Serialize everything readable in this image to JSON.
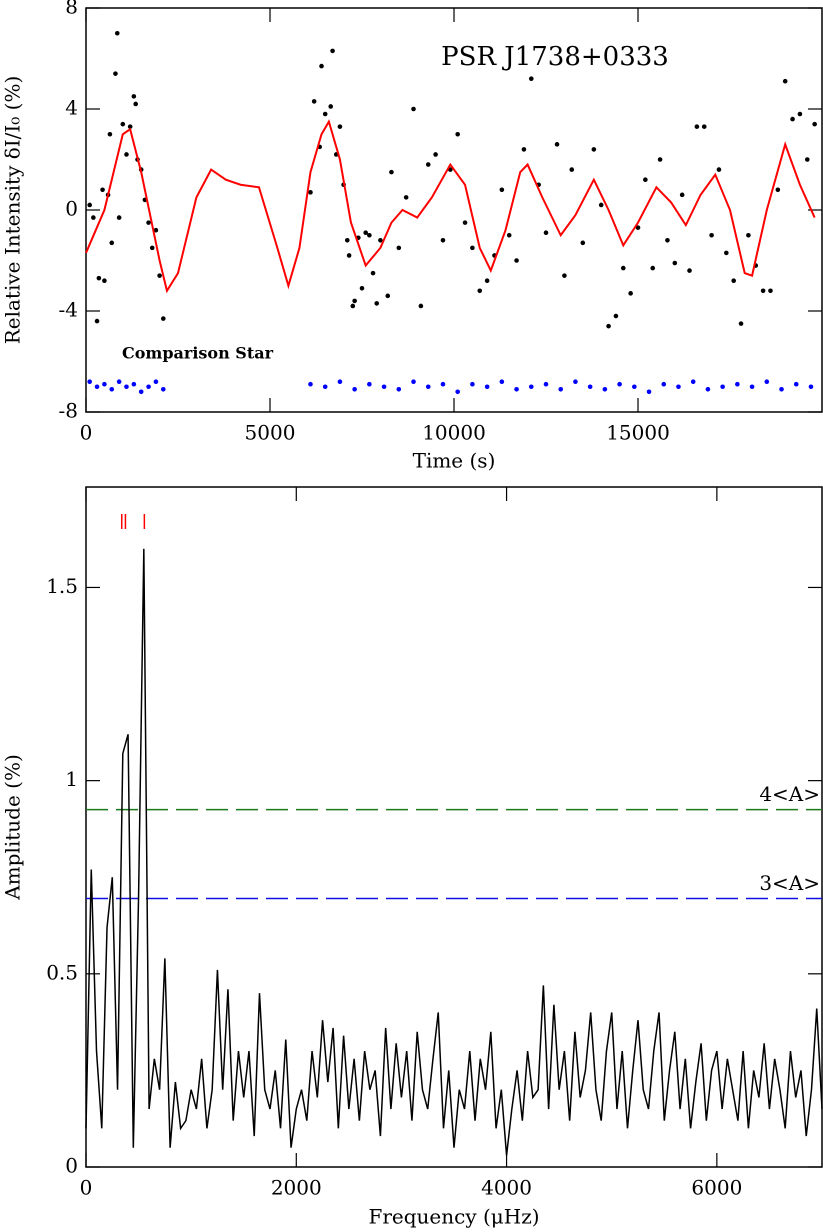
{
  "chart_data": [
    {
      "type": "scatter",
      "annotation": "PSR J1738+0333",
      "x_label": "Time (s)",
      "y_label": "Relative Intensity δI/I₀ (%)",
      "xlim": [
        0,
        20000
      ],
      "xticks": [
        0,
        5000,
        10000,
        15000
      ],
      "ylim": [
        -8,
        8
      ],
      "yticks": [
        -8,
        -4,
        0,
        4,
        8
      ],
      "series": [
        {
          "type": "scatter",
          "color": "#000000",
          "x": [
            100,
            200,
            300,
            350,
            450,
            500,
            600,
            650,
            700,
            800,
            850,
            900,
            1000,
            1100,
            1200,
            1300,
            1350,
            1400,
            1500,
            1600,
            1700,
            1800,
            1900,
            2000,
            2100,
            6100,
            6200,
            6350,
            6400,
            6500,
            6650,
            6700,
            6800,
            6900,
            7000,
            7100,
            7150,
            7250,
            7300,
            7400,
            7500,
            7600,
            7700,
            7800,
            7900,
            8000,
            8200,
            8300,
            8500,
            8700,
            8900,
            9100,
            9300,
            9500,
            9700,
            9900,
            10100,
            10300,
            10500,
            10700,
            10900,
            11100,
            11300,
            11500,
            11700,
            11900,
            12100,
            12300,
            12500,
            12800,
            13000,
            13200,
            13500,
            13800,
            14000,
            14200,
            14400,
            14600,
            14800,
            15000,
            15200,
            15400,
            15600,
            15800,
            16000,
            16200,
            16400,
            16600,
            16800,
            17000,
            17200,
            17400,
            17600,
            17800,
            18000,
            18200,
            18400,
            18600,
            18800,
            19000,
            19200,
            19400,
            19600,
            19800
          ],
          "values": [
            0.2,
            -0.3,
            -4.4,
            -2.7,
            0.8,
            -2.8,
            0.6,
            3.0,
            -1.3,
            5.4,
            7.0,
            -0.3,
            3.4,
            2.2,
            3.3,
            4.5,
            4.2,
            2.0,
            1.6,
            0.4,
            -0.5,
            -1.5,
            -0.8,
            -2.6,
            -4.3,
            0.7,
            4.3,
            2.5,
            5.7,
            3.8,
            4.1,
            6.3,
            2.2,
            3.3,
            1.0,
            -1.2,
            -1.8,
            -3.8,
            -3.6,
            -1.1,
            -3.1,
            -0.9,
            -1.0,
            -2.5,
            -3.7,
            -1.2,
            -3.4,
            1.5,
            -1.5,
            0.5,
            4.0,
            -3.8,
            1.8,
            2.2,
            -1.2,
            1.6,
            3.0,
            -0.5,
            -1.5,
            -3.2,
            -2.8,
            -1.8,
            0.8,
            -1.0,
            -2.0,
            2.4,
            5.2,
            1.0,
            -0.9,
            2.6,
            -2.6,
            1.6,
            -1.3,
            2.4,
            0.2,
            -4.6,
            -4.2,
            -2.3,
            -3.3,
            -0.7,
            1.2,
            -2.3,
            2.0,
            -1.2,
            -2.1,
            0.6,
            -2.4,
            3.3,
            3.3,
            -1.0,
            1.6,
            -1.7,
            -2.8,
            -4.5,
            -1.0,
            -2.2,
            -3.2,
            -3.2,
            0.8,
            5.1,
            3.6,
            3.8,
            2.0,
            3.4
          ]
        },
        {
          "type": "line",
          "color": "#ff0000",
          "x": [
            0,
            500,
            1000,
            1200,
            1500,
            2000,
            2200,
            2500,
            3000,
            3400,
            3800,
            4200,
            4700,
            5200,
            5500,
            5800,
            6100,
            6400,
            6600,
            6900,
            7200,
            7600,
            8000,
            8300,
            8600,
            9000,
            9400,
            9900,
            10300,
            10700,
            11000,
            11400,
            11800,
            12000,
            12400,
            12900,
            13300,
            13800,
            14200,
            14600,
            15000,
            15500,
            15900,
            16300,
            16700,
            17100,
            17500,
            17900,
            18100,
            18500,
            19000,
            19400,
            19800
          ],
          "values": [
            -1.7,
            0,
            3.0,
            3.2,
            1.5,
            -2.0,
            -3.2,
            -2.5,
            0.5,
            1.6,
            1.2,
            1.0,
            0.9,
            -1.5,
            -3.0,
            -1.5,
            1.5,
            3.0,
            3.5,
            2.0,
            -0.5,
            -2.2,
            -1.5,
            -0.5,
            0,
            -0.3,
            0.5,
            1.8,
            1.0,
            -1.5,
            -2.4,
            -0.8,
            1.5,
            1.8,
            0.5,
            -1.0,
            -0.2,
            1.2,
            0,
            -1.4,
            -0.5,
            0.9,
            0.3,
            -0.6,
            0.6,
            1.4,
            0,
            -2.5,
            -2.6,
            0,
            2.6,
            1.0,
            -0.3
          ]
        },
        {
          "type": "scatter",
          "name": "Comparison Star",
          "color": "#0000ff",
          "x": [
            100,
            300,
            500,
            700,
            900,
            1100,
            1300,
            1500,
            1700,
            1900,
            2100,
            6100,
            6500,
            6900,
            7300,
            7700,
            8100,
            8500,
            8900,
            9300,
            9700,
            10100,
            10500,
            10900,
            11300,
            11700,
            12100,
            12500,
            12900,
            13300,
            13700,
            14100,
            14500,
            14900,
            15300,
            15700,
            16100,
            16500,
            16900,
            17300,
            17700,
            18100,
            18500,
            18900,
            19300,
            19700
          ],
          "values": [
            -6.8,
            -7.0,
            -6.9,
            -7.1,
            -6.8,
            -7.0,
            -6.9,
            -7.2,
            -7.0,
            -6.8,
            -7.1,
            -6.9,
            -7.0,
            -6.8,
            -7.1,
            -6.9,
            -7.0,
            -7.1,
            -6.8,
            -7.0,
            -6.9,
            -7.2,
            -6.9,
            -7.0,
            -6.8,
            -7.1,
            -7.0,
            -6.9,
            -7.1,
            -6.8,
            -7.0,
            -7.1,
            -6.9,
            -7.0,
            -7.2,
            -6.9,
            -7.0,
            -6.8,
            -7.1,
            -7.0,
            -6.9,
            -7.0,
            -6.8,
            -7.1,
            -6.9,
            -7.0
          ]
        }
      ]
    },
    {
      "type": "line",
      "x_label": "Frequency (μHz)",
      "y_label": "Amplitude (%)",
      "xlim": [
        0,
        7000
      ],
      "xticks": [
        0,
        2000,
        4000,
        6000
      ],
      "ylim": [
        0,
        1.76
      ],
      "yticks": [
        0,
        0.5,
        1,
        1.5
      ],
      "markers": [
        340,
        375,
        555
      ],
      "marker_color": "#ff0000",
      "reference_lines": [
        {
          "value": 0.925,
          "label": "4<A>",
          "color": "#1a7a1a"
        },
        {
          "value": 0.695,
          "label": "3<A>",
          "color": "#1010e0"
        }
      ],
      "series": [
        {
          "type": "line",
          "color": "#000000",
          "x": [
            0,
            50,
            100,
            150,
            200,
            250,
            300,
            350,
            400,
            450,
            500,
            550,
            600,
            650,
            700,
            750,
            800,
            850,
            900,
            950,
            1000,
            1050,
            1100,
            1150,
            1200,
            1250,
            1300,
            1350,
            1400,
            1450,
            1500,
            1550,
            1600,
            1650,
            1700,
            1750,
            1800,
            1850,
            1900,
            1950,
            2000,
            2050,
            2100,
            2150,
            2200,
            2250,
            2300,
            2350,
            2400,
            2450,
            2500,
            2550,
            2600,
            2650,
            2700,
            2750,
            2800,
            2850,
            2900,
            2950,
            3000,
            3050,
            3100,
            3150,
            3200,
            3250,
            3300,
            3350,
            3400,
            3450,
            3500,
            3550,
            3600,
            3650,
            3700,
            3750,
            3800,
            3850,
            3900,
            3950,
            4000,
            4050,
            4100,
            4150,
            4200,
            4250,
            4300,
            4350,
            4400,
            4450,
            4500,
            4550,
            4600,
            4650,
            4700,
            4750,
            4800,
            4850,
            4900,
            4950,
            5000,
            5050,
            5100,
            5150,
            5200,
            5250,
            5300,
            5350,
            5400,
            5450,
            5500,
            5550,
            5600,
            5650,
            5700,
            5750,
            5800,
            5850,
            5900,
            5950,
            6000,
            6050,
            6100,
            6150,
            6200,
            6250,
            6300,
            6350,
            6400,
            6450,
            6500,
            6550,
            6600,
            6650,
            6700,
            6750,
            6800,
            6850,
            6900,
            6950,
            7000
          ],
          "values": [
            0.1,
            0.77,
            0.3,
            0.1,
            0.62,
            0.75,
            0.2,
            1.07,
            1.12,
            0.05,
            0.7,
            1.6,
            0.15,
            0.28,
            0.2,
            0.54,
            0.05,
            0.22,
            0.1,
            0.12,
            0.2,
            0.15,
            0.28,
            0.1,
            0.2,
            0.51,
            0.2,
            0.46,
            0.12,
            0.3,
            0.18,
            0.3,
            0.08,
            0.45,
            0.2,
            0.15,
            0.25,
            0.1,
            0.33,
            0.05,
            0.15,
            0.2,
            0.12,
            0.3,
            0.18,
            0.38,
            0.22,
            0.36,
            0.1,
            0.34,
            0.15,
            0.28,
            0.12,
            0.3,
            0.2,
            0.25,
            0.08,
            0.36,
            0.15,
            0.32,
            0.18,
            0.3,
            0.12,
            0.35,
            0.2,
            0.15,
            0.28,
            0.4,
            0.1,
            0.25,
            0.05,
            0.2,
            0.15,
            0.3,
            0.12,
            0.28,
            0.2,
            0.35,
            0.1,
            0.2,
            0.03,
            0.15,
            0.25,
            0.12,
            0.3,
            0.18,
            0.2,
            0.47,
            0.15,
            0.42,
            0.2,
            0.3,
            0.12,
            0.35,
            0.18,
            0.25,
            0.4,
            0.2,
            0.12,
            0.3,
            0.4,
            0.15,
            0.3,
            0.1,
            0.25,
            0.38,
            0.2,
            0.15,
            0.3,
            0.4,
            0.12,
            0.25,
            0.35,
            0.15,
            0.28,
            0.1,
            0.22,
            0.32,
            0.12,
            0.25,
            0.3,
            0.15,
            0.28,
            0.2,
            0.12,
            0.3,
            0.1,
            0.25,
            0.18,
            0.32,
            0.15,
            0.28,
            0.2,
            0.1,
            0.3,
            0.18,
            0.25,
            0.08,
            0.2,
            0.41,
            0.15
          ]
        }
      ]
    }
  ]
}
